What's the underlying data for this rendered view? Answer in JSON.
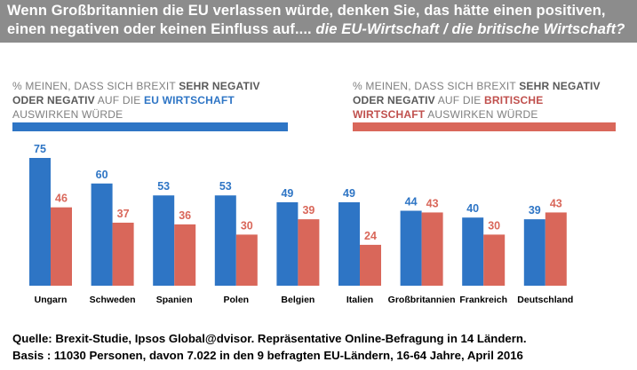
{
  "header": {
    "line1": "Wenn Großbritannien die EU verlassen würde, denken Sie, das hätte einen positiven,",
    "line2_plain": "einen negativen oder keinen Einfluss auf....",
    "line2_italic": "die EU-Wirtschaft / die britische Wirtschaft?"
  },
  "legend_left": {
    "part1": "% meinen, dass sich  Brexit ",
    "part2": "sehr negativ oder negativ",
    "part3": "  auf die ",
    "part4": "EU Wirtschaft",
    "part5": " auswirken würde",
    "color": "#2e75c5"
  },
  "legend_right": {
    "part1": "% meinen, dass sich   Brexit ",
    "part2": "sehr negativ oder negativ",
    "part3": " auf die ",
    "part4": "britische Wirtschaft",
    "part5": " auswirken würde",
    "color": "#d9675a"
  },
  "chart_data": {
    "type": "bar",
    "categories": [
      "Ungarn",
      "Schweden",
      "Spanien",
      "Polen",
      "Belgien",
      "Italien",
      "Großbritannien",
      "Frankreich",
      "Deutschland"
    ],
    "series": [
      {
        "values": [
          75,
          60,
          53,
          53,
          49,
          49,
          44,
          40,
          39
        ],
        "color": "#2e75c5",
        "label_color": "#2e75c5"
      },
      {
        "values": [
          46,
          37,
          36,
          30,
          39,
          24,
          43,
          30,
          43
        ],
        "color": "#d9675a",
        "label_color": "#d9675a"
      }
    ],
    "ylim": [
      0,
      80
    ],
    "grid": false,
    "data_labels": true,
    "title": "",
    "xlabel": "",
    "ylabel": ""
  },
  "footer": {
    "line1": "Quelle: Brexit-Studie,  Ipsos Global@dvisor.  Repräsentative  Online-Befragung  in 14 Ländern.",
    "line2": "Basis : 11030 Personen, davon 7.022 in den 9 befragten  EU-Ländern, 16-64 Jahre, April 2016"
  }
}
